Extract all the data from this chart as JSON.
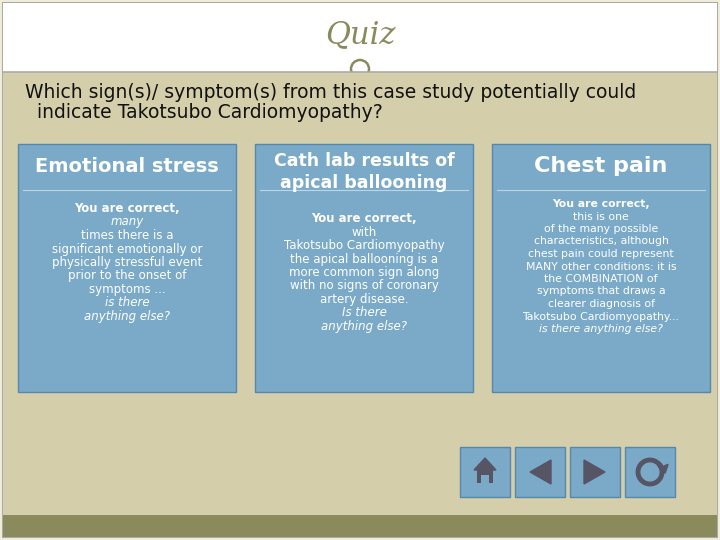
{
  "slide_bg": "#f0edd8",
  "content_bg": "#d4ceaa",
  "card_bg": "#7baac8",
  "title_text": "Quiz",
  "title_color": "#8a8a5c",
  "question_line1": "Which sign(s)/ symptom(s) from this case study potentially could",
  "question_line2": "  indicate Takotsubo Cardiomyopathy?",
  "question_color": "#111111",
  "card1_title": "Emotional stress",
  "card2_title": "Cath lab results of\napical ballooning",
  "card3_title": "Chest pain",
  "white": "#ffffff",
  "nav_bg": "#7baac8",
  "nav_icon": "#555566",
  "bottom_bar": "#8a8a5c",
  "border_color": "#aaaaaa",
  "sep_color": "#5588aa"
}
